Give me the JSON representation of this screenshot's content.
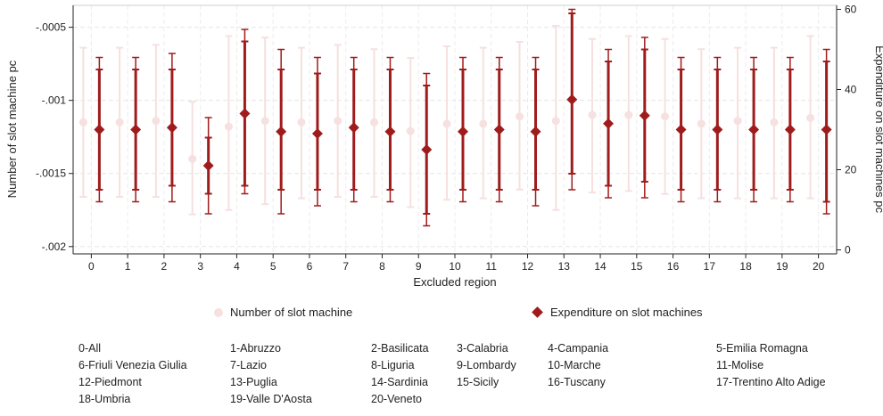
{
  "chart_data": {
    "type": "errorbar",
    "xlabel": "Excluded region",
    "ylabel_left": "Number of slot machine pc",
    "ylabel_right": "Expenditure on slot machines pc",
    "x": [
      0,
      1,
      2,
      3,
      4,
      5,
      6,
      7,
      8,
      9,
      10,
      11,
      12,
      13,
      14,
      15,
      16,
      17,
      18,
      19,
      20
    ],
    "y_left_ticks": [
      "-.0005",
      "-.001",
      "-.0015",
      "-.002"
    ],
    "y_left_tick_values": [
      -0.0005,
      -0.001,
      -0.0015,
      -0.002
    ],
    "ylim_left": [
      -0.00205,
      -0.00035
    ],
    "y_right_ticks": [
      "60",
      "40",
      "20",
      "0"
    ],
    "y_right_tick_values": [
      60,
      40,
      20,
      0
    ],
    "ylim_right": [
      -1,
      61
    ],
    "grid": true,
    "legend_position": "bottom",
    "series": [
      {
        "name": "Number of slot machine",
        "axis": "left",
        "marker": "circle",
        "color": "#f6e0e0",
        "point": [
          -0.00115,
          -0.00115,
          -0.00114,
          -0.0014,
          -0.00118,
          -0.00114,
          -0.00115,
          -0.00114,
          -0.00115,
          -0.00121,
          -0.00116,
          -0.00116,
          -0.00111,
          -0.00114,
          -0.0011,
          -0.0011,
          -0.00111,
          -0.00116,
          -0.00114,
          -0.00115,
          -0.00112
        ],
        "ci_upper": [
          -0.00064,
          -0.00064,
          -0.00062,
          -0.00101,
          -0.00056,
          -0.00057,
          -0.00064,
          -0.00062,
          -0.00065,
          -0.00071,
          -0.00063,
          -0.00064,
          -0.0006,
          -0.00049,
          -0.00058,
          -0.00056,
          -0.00058,
          -0.00065,
          -0.00064,
          -0.00064,
          -0.00056
        ],
        "ci_lower": [
          -0.00166,
          -0.00166,
          -0.00166,
          -0.00178,
          -0.00175,
          -0.00171,
          -0.00167,
          -0.00166,
          -0.00166,
          -0.00173,
          -0.00168,
          -0.00167,
          -0.00161,
          -0.00175,
          -0.00163,
          -0.00162,
          -0.00164,
          -0.00167,
          -0.00167,
          -0.00167,
          -0.00167
        ]
      },
      {
        "name": "Expenditure on slot machines",
        "axis": "right",
        "marker": "diamond",
        "color": "#a01c1c",
        "point": [
          30,
          30,
          30.5,
          21,
          34,
          29.5,
          29,
          30.5,
          29.5,
          25,
          29.5,
          30,
          29.5,
          37.5,
          31.5,
          33.5,
          30,
          30,
          30,
          30,
          30
        ],
        "ci_inner_upper": [
          45,
          45,
          45,
          28,
          52,
          45,
          44,
          45,
          45,
          41,
          45,
          45,
          45,
          59,
          47,
          50,
          45,
          45,
          45,
          45,
          47
        ],
        "ci_inner_lower": [
          15,
          15,
          16,
          14,
          16,
          15,
          15,
          15,
          15,
          9,
          15,
          15,
          15,
          19,
          16,
          17,
          15,
          15,
          15,
          15,
          12
        ],
        "ci_outer_upper": [
          48,
          48,
          49,
          33,
          55,
          50,
          48,
          48,
          48,
          44,
          48,
          48,
          48,
          60,
          50,
          53,
          48,
          48,
          48,
          48,
          50
        ],
        "ci_outer_lower": [
          12,
          12,
          12,
          9,
          14,
          9,
          11,
          12,
          12,
          6,
          12,
          12,
          11,
          15,
          13,
          13,
          12,
          12,
          12,
          12,
          9
        ]
      }
    ]
  },
  "legend": {
    "item1": "Number of slot machine",
    "item2": "Expenditure on slot machines"
  },
  "region_note": [
    [
      "0-All",
      "1-Abruzzo",
      "2-Basilicata",
      "3-Calabria",
      "4-Campania",
      "5-Emilia Romagna"
    ],
    [
      "6-Friuli Venezia Giulia",
      "7-Lazio",
      "8-Liguria",
      "9-Lombardy",
      "10-Marche",
      "11-Molise"
    ],
    [
      "12-Piedmont",
      "13-Puglia",
      "14-Sardinia",
      "15-Sicily",
      "16-Tuscany",
      "17-Trentino Alto Adige"
    ],
    [
      "18-Umbria",
      "19-Valle D'Aosta",
      "20-Veneto"
    ]
  ]
}
